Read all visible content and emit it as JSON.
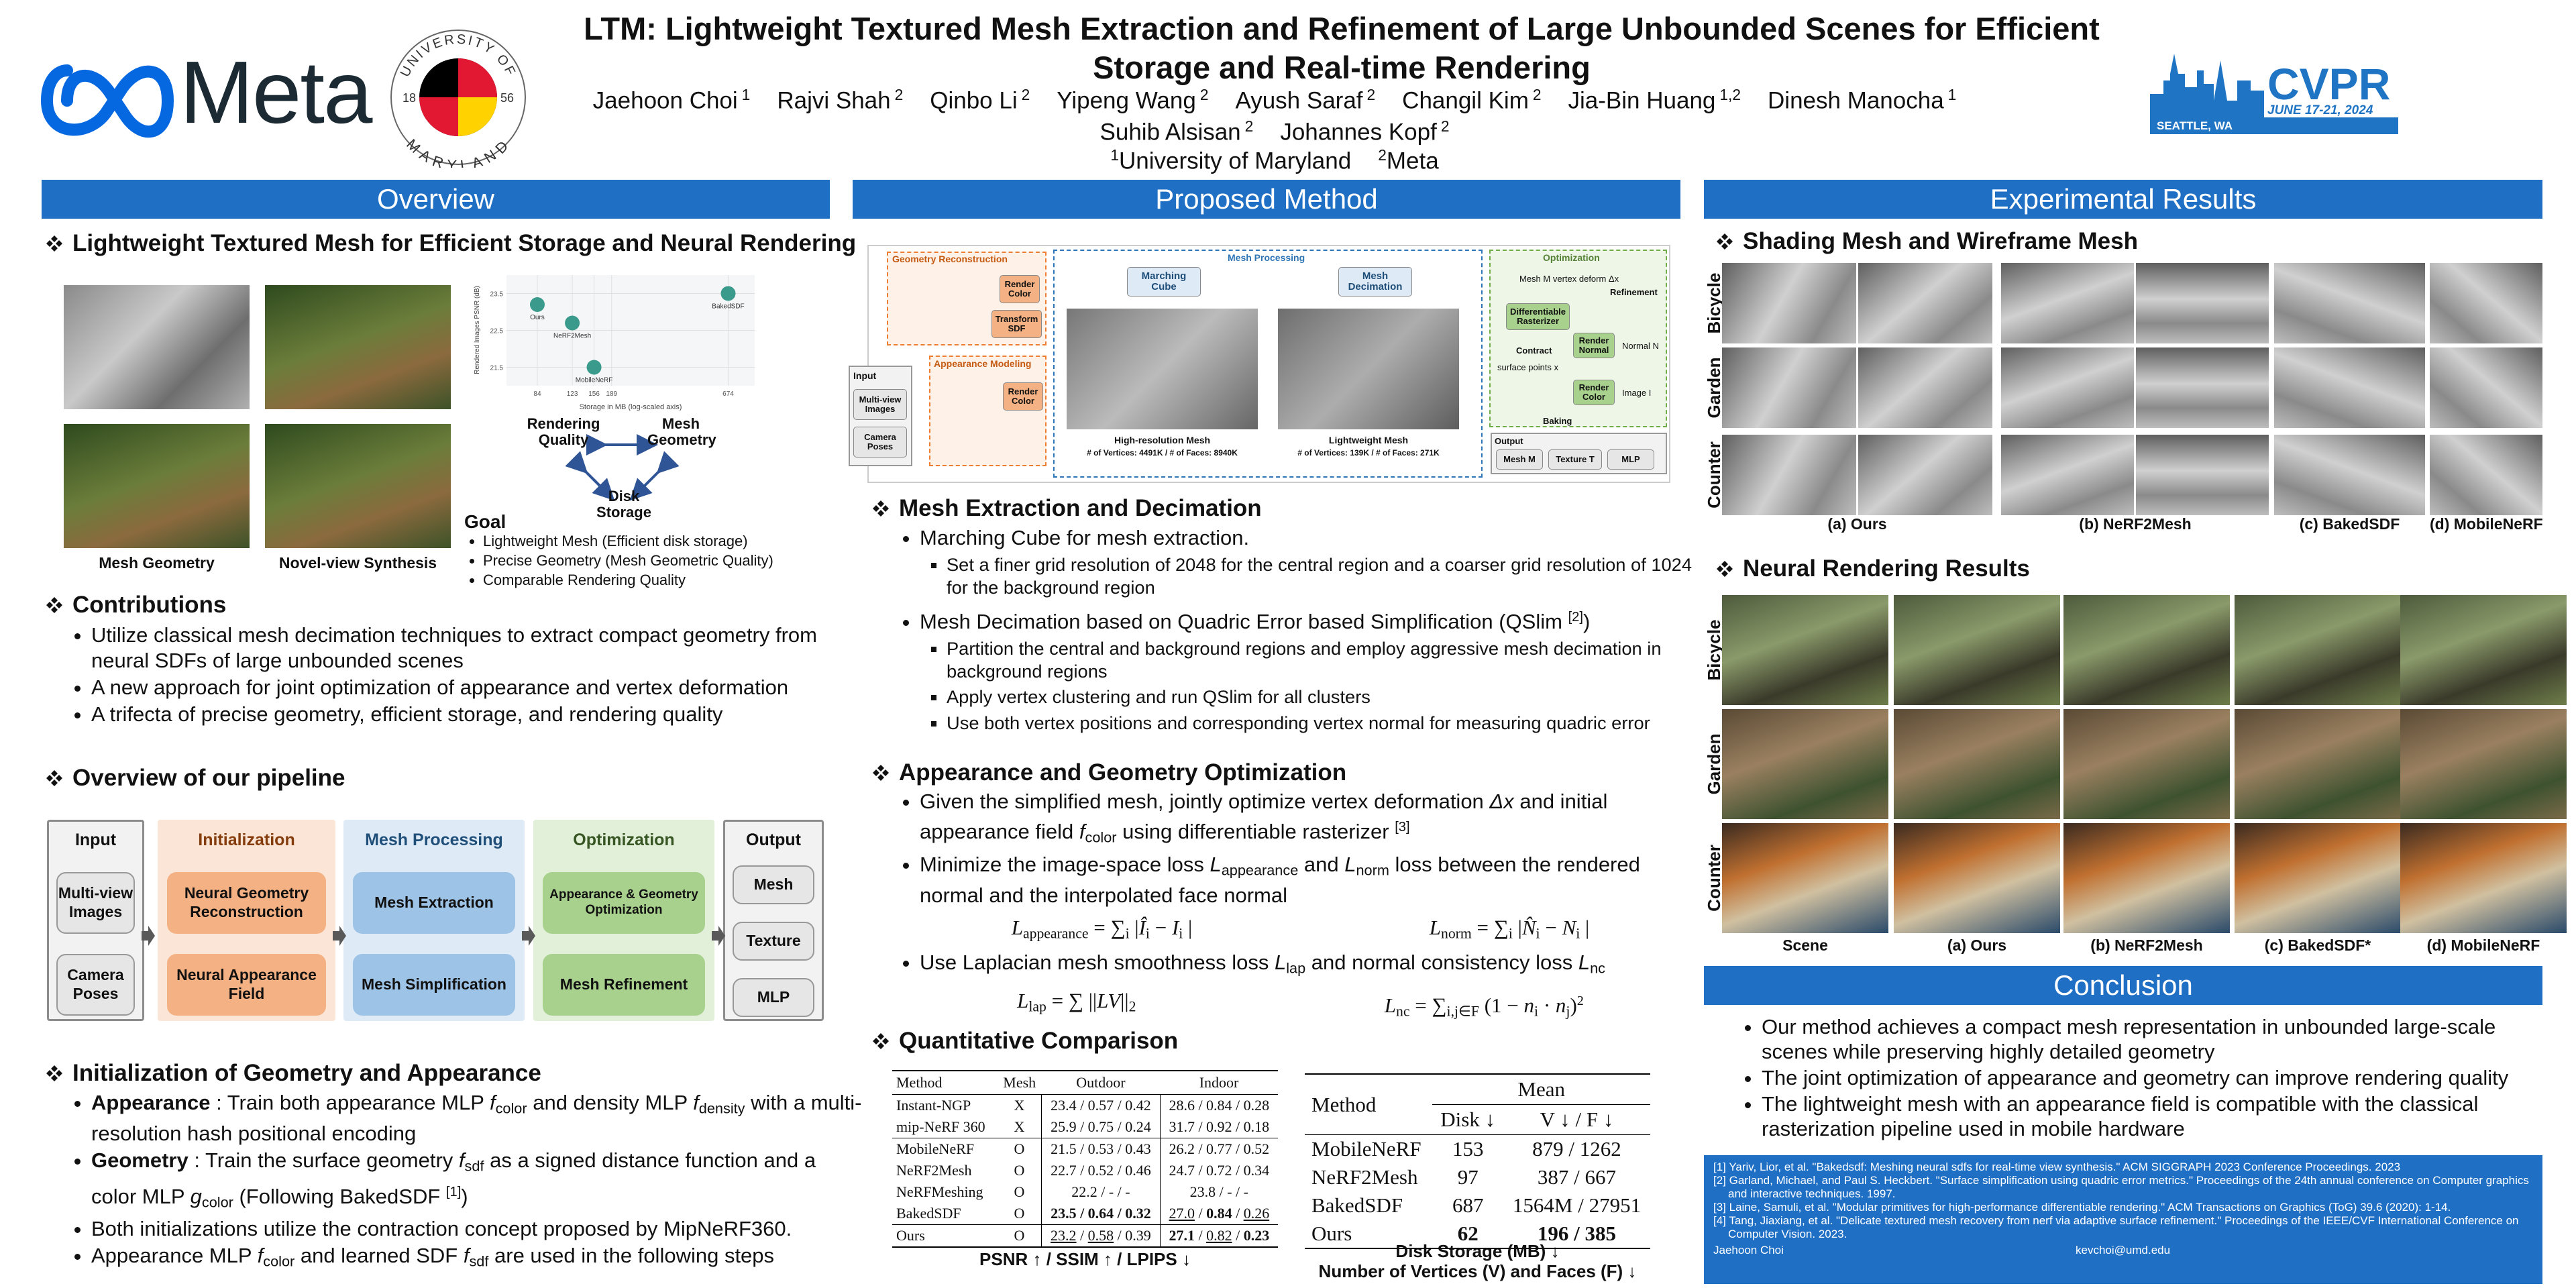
{
  "header": {
    "title": "LTM: Lightweight Textured Mesh Extraction and Refinement of Large Unbounded Scenes for Efficient Storage and Real-time Rendering",
    "logo": "Meta",
    "umd": {
      "top": "UNIVERSITY OF",
      "bottom": "MARYLAND",
      "year_left": "18",
      "year_right": "56"
    },
    "conference": {
      "name": "CVPR",
      "place": "SEATTLE, WA",
      "dates": "JUNE 17-21, 2024"
    },
    "authors": [
      {
        "name": "Jaehoon Choi",
        "aff": "1"
      },
      {
        "name": "Rajvi Shah",
        "aff": "2"
      },
      {
        "name": "Qinbo Li",
        "aff": "2"
      },
      {
        "name": "Yipeng Wang",
        "aff": "2"
      },
      {
        "name": "Ayush Saraf",
        "aff": "2"
      },
      {
        "name": "Changil Kim",
        "aff": "2"
      },
      {
        "name": "Jia-Bin Huang",
        "aff": "1,2"
      },
      {
        "name": "Dinesh Manocha",
        "aff": "1"
      },
      {
        "name": "Suhib Alsisan",
        "aff": "2"
      },
      {
        "name": "Johannes Kopf",
        "aff": "2"
      }
    ],
    "affiliations": [
      {
        "num": "1",
        "name": "University of Maryland"
      },
      {
        "num": "2",
        "name": "Meta"
      }
    ]
  },
  "overview": {
    "heading": "Overview",
    "teaser": {
      "heading": "Lightweight Textured Mesh for Efficient Storage and Neural Rendering",
      "captions": [
        "Mesh Geometry",
        "Novel-view Synthesis"
      ],
      "plot": {
        "xlabel": "Storage in MB (log-scaled axis)",
        "ylabel": "Rendered Images PSNR (dB)",
        "xlim": [
          60,
          900
        ],
        "ylim": [
          21,
          24
        ],
        "xticks": [
          84,
          123,
          156,
          189,
          674
        ],
        "yticks": [
          21.5,
          22.5,
          23.5
        ],
        "points": [
          {
            "label": "Ours",
            "x": 84,
            "y": 23.2
          },
          {
            "label": "NeRF2Mesh",
            "x": 123,
            "y": 22.7
          },
          {
            "label": "MobileNeRF",
            "x": 156,
            "y": 21.5
          },
          {
            "label": "BakedSDF",
            "x": 674,
            "y": 23.5
          }
        ]
      },
      "triangle": {
        "rendering_quality": "Rendering Quality",
        "mesh_geometry": "Mesh Geometry",
        "disk_storage": "Disk Storage"
      },
      "goal": {
        "title": "Goal",
        "items": [
          "Lightweight Mesh (Efficient disk storage)",
          "Precise Geometry (Mesh Geometric Quality)",
          "Comparable Rendering Quality"
        ]
      }
    },
    "contributions": {
      "heading": "Contributions",
      "items": [
        "Utilize classical mesh decimation techniques to extract compact geometry from neural SDFs of large unbounded scenes",
        "A new approach for joint optimization of appearance and vertex deformation",
        "A trifecta of precise geometry, efficient storage, and rendering quality"
      ]
    },
    "pipeline": {
      "heading": "Overview of our pipeline",
      "groups": [
        {
          "title": "Input",
          "items": [
            "Multi-view Images",
            "Camera Poses"
          ]
        },
        {
          "title": "Initialization",
          "items": [
            "Neural Geometry Reconstruction",
            "Neural Appearance Field"
          ]
        },
        {
          "title": "Mesh Processing",
          "items": [
            "Mesh Extraction",
            "Mesh Simplification"
          ]
        },
        {
          "title": "Optimization",
          "items": [
            "Appearance & Geometry Optimization",
            "Mesh Refinement"
          ]
        },
        {
          "title": "Output",
          "items": [
            "Mesh",
            "Texture",
            "MLP"
          ]
        }
      ]
    },
    "initialization": {
      "heading": "Initialization of Geometry and Appearance",
      "items": [
        [
          {
            "b": "Appearance"
          },
          " : Train both appearance MLP ",
          {
            "i": "f"
          },
          {
            "sub": "color"
          },
          " and density MLP ",
          {
            "i": "f"
          },
          {
            "sub": "density"
          },
          " with a multi-resolution hash positional encoding"
        ],
        [
          {
            "b": "Geometry"
          },
          " : Train the surface geometry ",
          {
            "i": "f"
          },
          {
            "sub": "sdf"
          },
          " as a signed distance function and a color MLP ",
          {
            "i": "g"
          },
          {
            "sub": "color"
          },
          " (Following BakedSDF ",
          {
            "sup": "[1]"
          },
          ")"
        ],
        "Both initializations utilize the contraction concept proposed by MipNeRF360.",
        [
          "Appearance MLP ",
          {
            "i": "f"
          },
          {
            "sub": "color"
          },
          " and learned SDF ",
          {
            "i": "f"
          },
          {
            "sub": "sdf"
          },
          " are used in the following steps"
        ]
      ]
    }
  },
  "method": {
    "heading": "Proposed Method",
    "figure": {
      "geometry_reconstruction": "Geometry Reconstruction",
      "mesh_processing": "Mesh Processing",
      "optimization": "Optimization",
      "appearance_modeling": "Appearance Modeling",
      "input": "Input",
      "multiview": "Multi-view Images",
      "camera_poses": "Camera Poses",
      "render_color_1": "Render Color",
      "transform_sdf": "Transform SDF",
      "render_color_2": "Render Color",
      "marching_cube": "Marching Cube",
      "mesh_decimation": "Mesh Decimation",
      "highres": "High-resolution Mesh",
      "highres_stats": "# of Vertices: 4491K / # of Faces: 8940K",
      "lightweight": "Lightweight Mesh",
      "lightweight_stats": "# of Vertices: 139K / # of Faces: 271K",
      "mesh_deform": "Mesh M vertex deform Δx",
      "diff_rast": "Differentiable Rasterizer",
      "refinement": "Refinement",
      "contract": "Contract",
      "render_normal": "Render Normal",
      "normal": "Normal N",
      "surface_points": "surface points x",
      "render_color_3": "Render Color",
      "image": "Image I",
      "baking": "Baking",
      "output": "Output",
      "out_mesh": "Mesh M",
      "out_texture": "Texture T",
      "out_mlp": "MLP"
    },
    "extraction": {
      "heading": "Mesh Extraction and Decimation",
      "items": [
        {
          "text": "Marching Cube for mesh extraction.",
          "items": [
            "Set a finer grid resolution of 2048 for the central region and a coarser grid resolution of 1024 for the background region"
          ]
        },
        {
          "text": [
            "Mesh Decimation based on Quadric Error based Simplification (QSlim ",
            {
              "sup": "[2]"
            },
            ")"
          ],
          "items": [
            "Partition the central and background regions and employ aggressive mesh decimation in background regions",
            "Apply vertex clustering and run QSlim for all clusters",
            "Use both vertex positions and corresponding vertex normal for measuring quadric error"
          ]
        }
      ]
    },
    "optimization": {
      "heading": "Appearance and Geometry Optimization",
      "items": [
        [
          "Given the simplified mesh, jointly optimize vertex deformation ",
          {
            "i": "Δx"
          },
          " and initial appearance field ",
          {
            "i": "f"
          },
          {
            "sub": "color"
          },
          " using differentiable rasterizer ",
          {
            "sup": "[3]"
          }
        ],
        {
          "text": [
            "Minimize the image-space loss ",
            {
              "i": "L"
            },
            {
              "sub": "appearance"
            },
            " and ",
            {
              "i": "L"
            },
            {
              "sub": "norm"
            },
            " loss between the rendered normal and the interpolated face normal"
          ],
          "equations": [
            [
              {
                "i": "L"
              },
              {
                "sub": "appearance"
              },
              " = ∑",
              {
                "sub": "i"
              },
              " |",
              {
                "i": "Î"
              },
              {
                "sub": "i"
              },
              " − ",
              {
                "i": "I"
              },
              {
                "sub": "i"
              },
              " |"
            ],
            [
              {
                "i": "L"
              },
              {
                "sub": "norm"
              },
              " = ∑",
              {
                "sub": "i"
              },
              " |",
              {
                "i": "N̂"
              },
              {
                "sub": "i"
              },
              " − ",
              {
                "i": "N"
              },
              {
                "sub": "i"
              },
              " |"
            ]
          ]
        },
        {
          "text": [
            "Use Laplacian mesh smoothness loss ",
            {
              "i": "L"
            },
            {
              "sub": "lap"
            },
            " and normal consistency loss ",
            {
              "i": "L"
            },
            {
              "sub": "nc"
            }
          ],
          "equations": [
            [
              {
                "i": "L"
              },
              {
                "sub": "lap"
              },
              " = ∑ ||",
              {
                "i": "LV"
              },
              "||",
              {
                "sub": "2"
              }
            ],
            [
              {
                "i": "L"
              },
              {
                "sub": "nc"
              },
              " = ∑",
              {
                "sub": "i,j∈F"
              },
              " (1 − ",
              {
                "i": "n"
              },
              {
                "sub": "i"
              },
              " · ",
              {
                "i": "n"
              },
              {
                "sub": "j"
              },
              ")",
              {
                "sup": "2"
              }
            ]
          ]
        }
      ]
    },
    "comparison": {
      "heading": "Quantitative Comparison",
      "table_quality": {
        "header": [
          "Method",
          "Mesh",
          "Outdoor",
          "Indoor"
        ],
        "groups": [
          [
            [
              "Instant-NGP",
              "X",
              "23.4 / 0.57 / 0.42",
              "28.6 / 0.84 / 0.28"
            ],
            [
              "mip-NeRF 360",
              "X",
              "25.9 / 0.75 / 0.24",
              "31.7 / 0.92 / 0.18"
            ]
          ],
          [
            [
              "MobileNeRF",
              "O",
              "21.5 / 0.53 / 0.43",
              "26.2 / 0.77 / 0.52"
            ],
            [
              "NeRF2Mesh",
              "O",
              "22.7 / 0.52 / 0.46",
              "24.7 / 0.72 / 0.34"
            ],
            [
              "NeRFMeshing",
              "O",
              "22.2 /   -   /   -",
              "23.8 /   -   /   -"
            ],
            [
              "BakedSDF",
              "O",
              [
                {
                  "b": "23.5 / 0.64 / 0.32"
                }
              ],
              [
                {
                  "u": "27.0"
                },
                " / ",
                {
                  "b": "0.84"
                },
                " / ",
                {
                  "u": "0.26"
                }
              ]
            ]
          ],
          [
            [
              "Ours",
              "O",
              [
                {
                  "u": "23.2"
                },
                " / ",
                {
                  "u": "0.58"
                },
                " / 0.39"
              ],
              [
                {
                  "b": "27.1"
                },
                " / ",
                {
                  "u": "0.82"
                },
                " / ",
                {
                  "b": "0.23"
                }
              ]
            ]
          ]
        ],
        "caption": "PSNR ↑ / SSIM ↑ / LPIPS ↓"
      },
      "table_storage": {
        "header": [
          "Method",
          "Mean"
        ],
        "subheader": [
          "Disk ↓",
          "V ↓ / F ↓"
        ],
        "rows": [
          [
            "MobileNeRF",
            "153",
            "879 / 1262"
          ],
          [
            "NeRF2Mesh",
            "97",
            "387 / 667"
          ],
          [
            "BakedSDF",
            "687",
            "1564M / 27951"
          ],
          [
            "Ours",
            [
              {
                "b": "62"
              }
            ],
            [
              {
                "b": "196 / 385"
              }
            ]
          ]
        ],
        "caption": [
          "Disk Storage (MB) ↓",
          "Number of Vertices (V) and Faces (F) ↓"
        ]
      }
    }
  },
  "results": {
    "heading": "Experimental Results",
    "shading": {
      "heading": "Shading Mesh and Wireframe Mesh",
      "rows": [
        "Bicycle",
        "Garden",
        "Counter"
      ],
      "columns": [
        "(a) Ours",
        "(b) NeRF2Mesh",
        "(c) BakedSDF",
        "(d) MobileNeRF"
      ]
    },
    "rendering": {
      "heading": "Neural Rendering Results",
      "rows": [
        "Bicycle",
        "Garden",
        "Counter"
      ],
      "columns": [
        "Scene",
        "(a) Ours",
        "(b) NeRF2Mesh",
        "(c) BakedSDF*",
        "(d) MobileNeRF"
      ]
    },
    "conclusion": {
      "heading": "Conclusion",
      "items": [
        "Our method achieves a compact mesh representation in unbounded large-scale scenes while preserving highly detailed geometry",
        "The joint optimization of appearance and geometry can improve rendering quality",
        "The lightweight mesh with an appearance field is compatible with the classical rasterization pipeline used in mobile hardware"
      ]
    },
    "references": [
      "[1] Yariv, Lior, et al. \"Bakedsdf: Meshing neural sdfs for real-time view synthesis.\" ACM SIGGRAPH 2023 Conference Proceedings. 2023",
      "[2] Garland, Michael, and Paul S. Heckbert. \"Surface simplification using quadric error metrics.\" Proceedings of the 24th annual conference on Computer graphics and interactive techniques. 1997.",
      "[3] Laine, Samuli, et al. \"Modular primitives for high-performance differentiable rendering.\" ACM Transactions on Graphics (ToG) 39.6 (2020): 1-14.",
      "[4] Tang, Jiaxiang, et al. \"Delicate textured mesh recovery from nerf via adaptive surface refinement.\" Proceedings of the IEEE/CVF International Conference on Computer Vision. 2023."
    ],
    "contact": {
      "name": "Jaehoon Choi",
      "email": "kevchoi@umd.edu"
    }
  }
}
